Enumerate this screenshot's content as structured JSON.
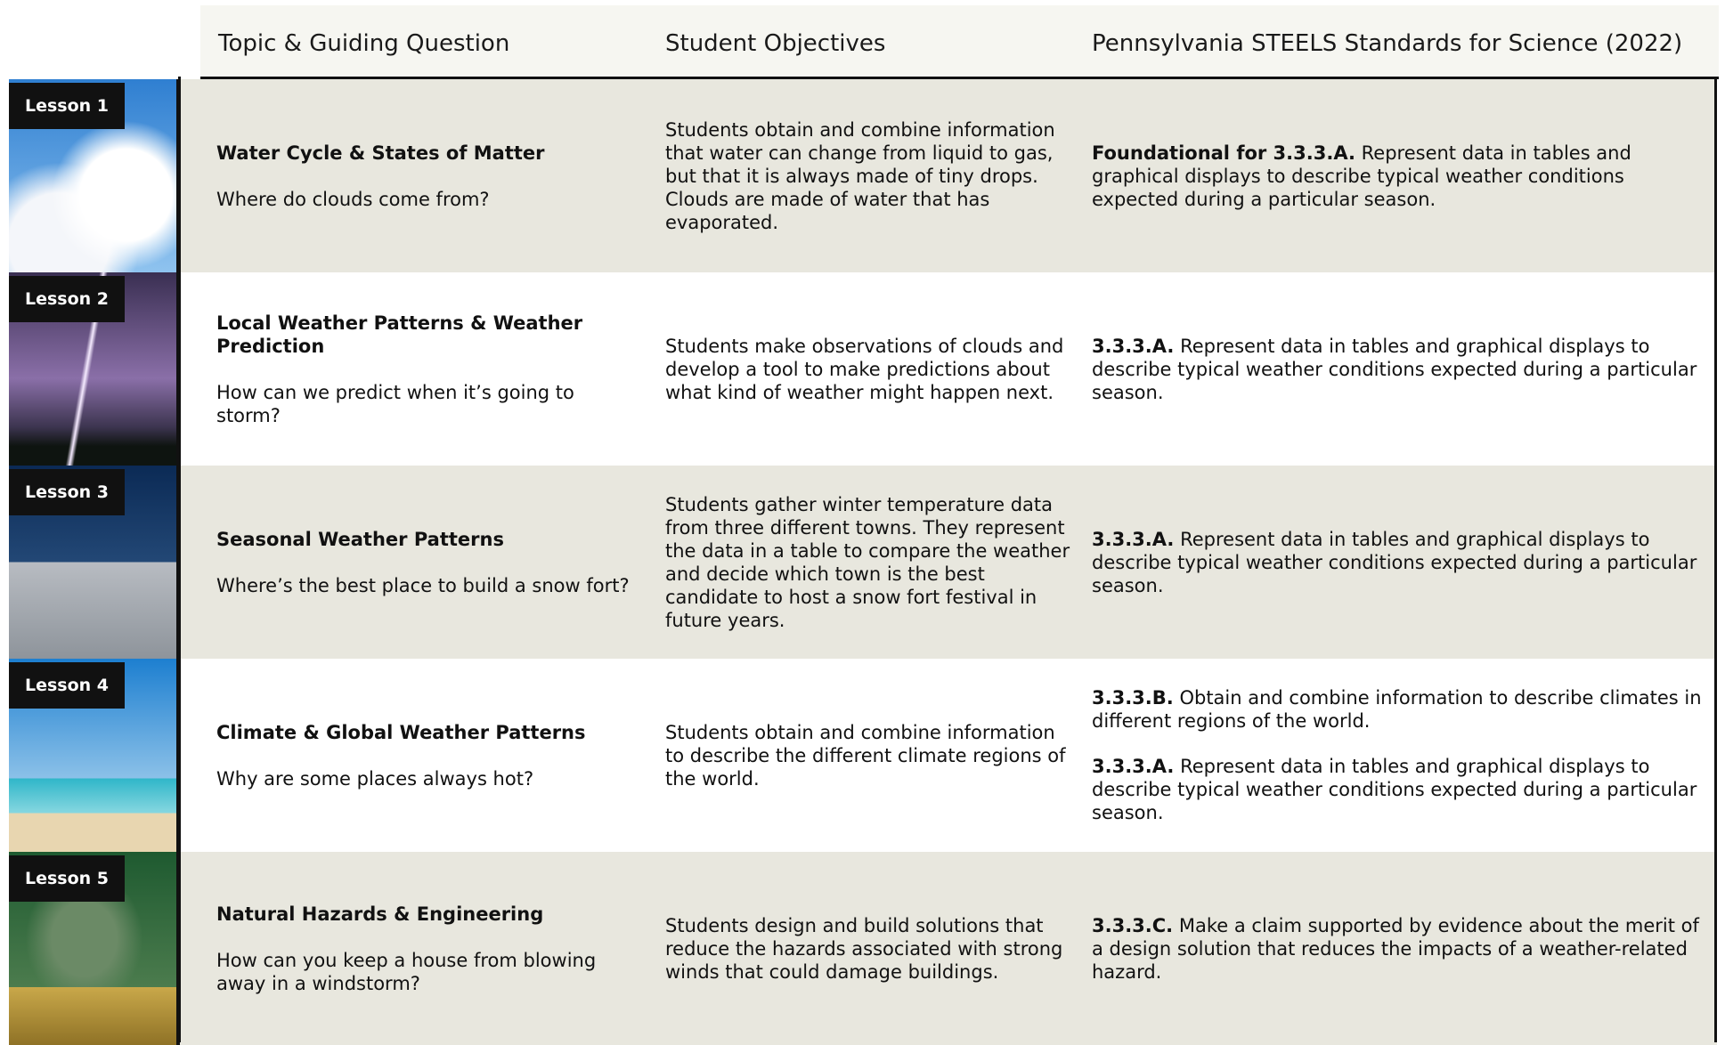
{
  "header": {
    "columns": [
      "Topic & Guiding Question",
      "Student Objectives",
      "Pennsylvania STEELS Standards for Science (2022)"
    ]
  },
  "lessons": [
    {
      "label": "Lesson 1",
      "topic": "Water Cycle & States of Matter",
      "question": "Where do clouds come from?",
      "objectives": "Students obtain and combine information that water can change from liquid to gas, but that it is always made of tiny drops. Clouds are made of water that has evaporated.",
      "standards": [
        {
          "code": "Foundational for 3.3.3.A.",
          "text": "Represent data in tables and graphical displays to describe typical weather conditions expected during a particular season."
        }
      ]
    },
    {
      "label": "Lesson 2",
      "topic": "Local Weather Patterns & Weather Prediction",
      "question": "How can we predict when it’s going to storm?",
      "objectives": "Students make observations of clouds and develop a tool to make predictions about what kind of weather might happen next.",
      "standards": [
        {
          "code": "3.3.3.A.",
          "text": "Represent data in tables and graphical displays to describe typical weather conditions expected during a particular season."
        }
      ]
    },
    {
      "label": "Lesson 3",
      "topic": "Seasonal Weather Patterns",
      "question": "Where’s the best place to build a snow fort?",
      "objectives": "Students gather winter temperature data from three different towns. They represent the data in a table to compare the weather and decide which town is the best candidate to host a snow fort festival in future years.",
      "standards": [
        {
          "code": "3.3.3.A.",
          "text": "Represent data in tables and graphical displays to describe typical weather conditions expected during a particular season."
        }
      ]
    },
    {
      "label": "Lesson 4",
      "topic": "Climate & Global Weather Patterns",
      "question": "Why are some places always hot?",
      "objectives": "Students obtain and combine information to describe the different climate regions of the world.",
      "standards": [
        {
          "code": "3.3.3.B.",
          "text": "Obtain and combine information to describe climates in different regions of the world."
        },
        {
          "code": "3.3.3.A.",
          "text": "Represent data in tables and graphical displays to describe typical weather conditions expected during a particular season."
        }
      ]
    },
    {
      "label": "Lesson 5",
      "topic": "Natural Hazards & Engineering",
      "question": "How can you keep a house from blowing away in a windstorm?",
      "objectives": "Students design and build solutions that reduce the hazards associated with strong winds that could damage buildings.",
      "standards": [
        {
          "code": "3.3.3.C.",
          "text": "Make a claim supported by evidence about the merit of a design solution that reduces the impacts of a weather-related hazard."
        }
      ]
    }
  ]
}
